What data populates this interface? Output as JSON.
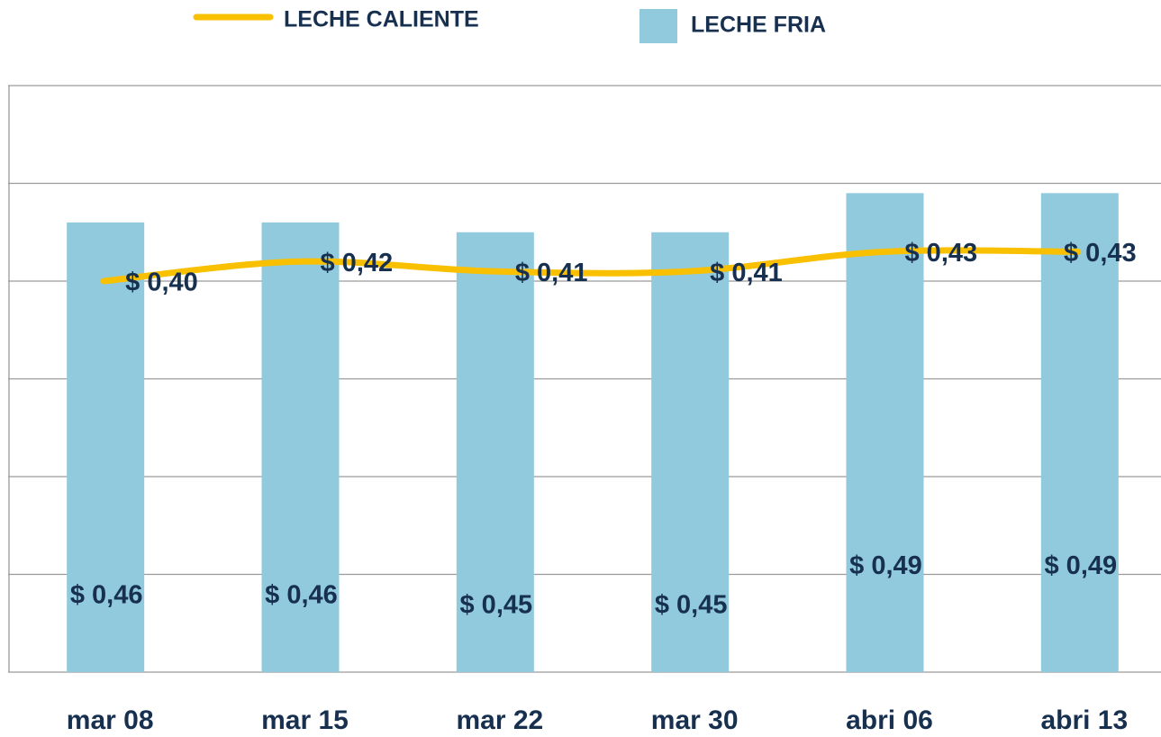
{
  "chart_data": {
    "type": "bar_line",
    "categories": [
      "mar 08",
      "mar 15",
      "mar 22",
      "mar 30",
      "abri 06",
      "abri 13"
    ],
    "series": [
      {
        "name": "LECHE CALIENTE",
        "type": "line",
        "color": "#f9c000",
        "values": [
          0.4,
          0.42,
          0.41,
          0.41,
          0.43,
          0.43
        ],
        "value_labels": [
          "$ 0,40",
          "$ 0,42",
          "$ 0,41",
          "$ 0,41",
          "$ 0,43",
          "$ 0,43"
        ]
      },
      {
        "name": "LECHE FRIA",
        "type": "bar",
        "color": "#92cadd",
        "values": [
          0.46,
          0.46,
          0.45,
          0.45,
          0.49,
          0.49
        ],
        "value_labels": [
          "$ 0,46",
          "$ 0,46",
          "$ 0,45",
          "$ 0,45",
          "$ 0,49",
          "$ 0,49"
        ]
      }
    ],
    "ylim": [
      0,
      0.6
    ],
    "yticks": [
      0,
      0.1,
      0.2,
      0.3,
      0.4,
      0.5,
      0.6
    ],
    "grid": true,
    "legend": "top"
  }
}
